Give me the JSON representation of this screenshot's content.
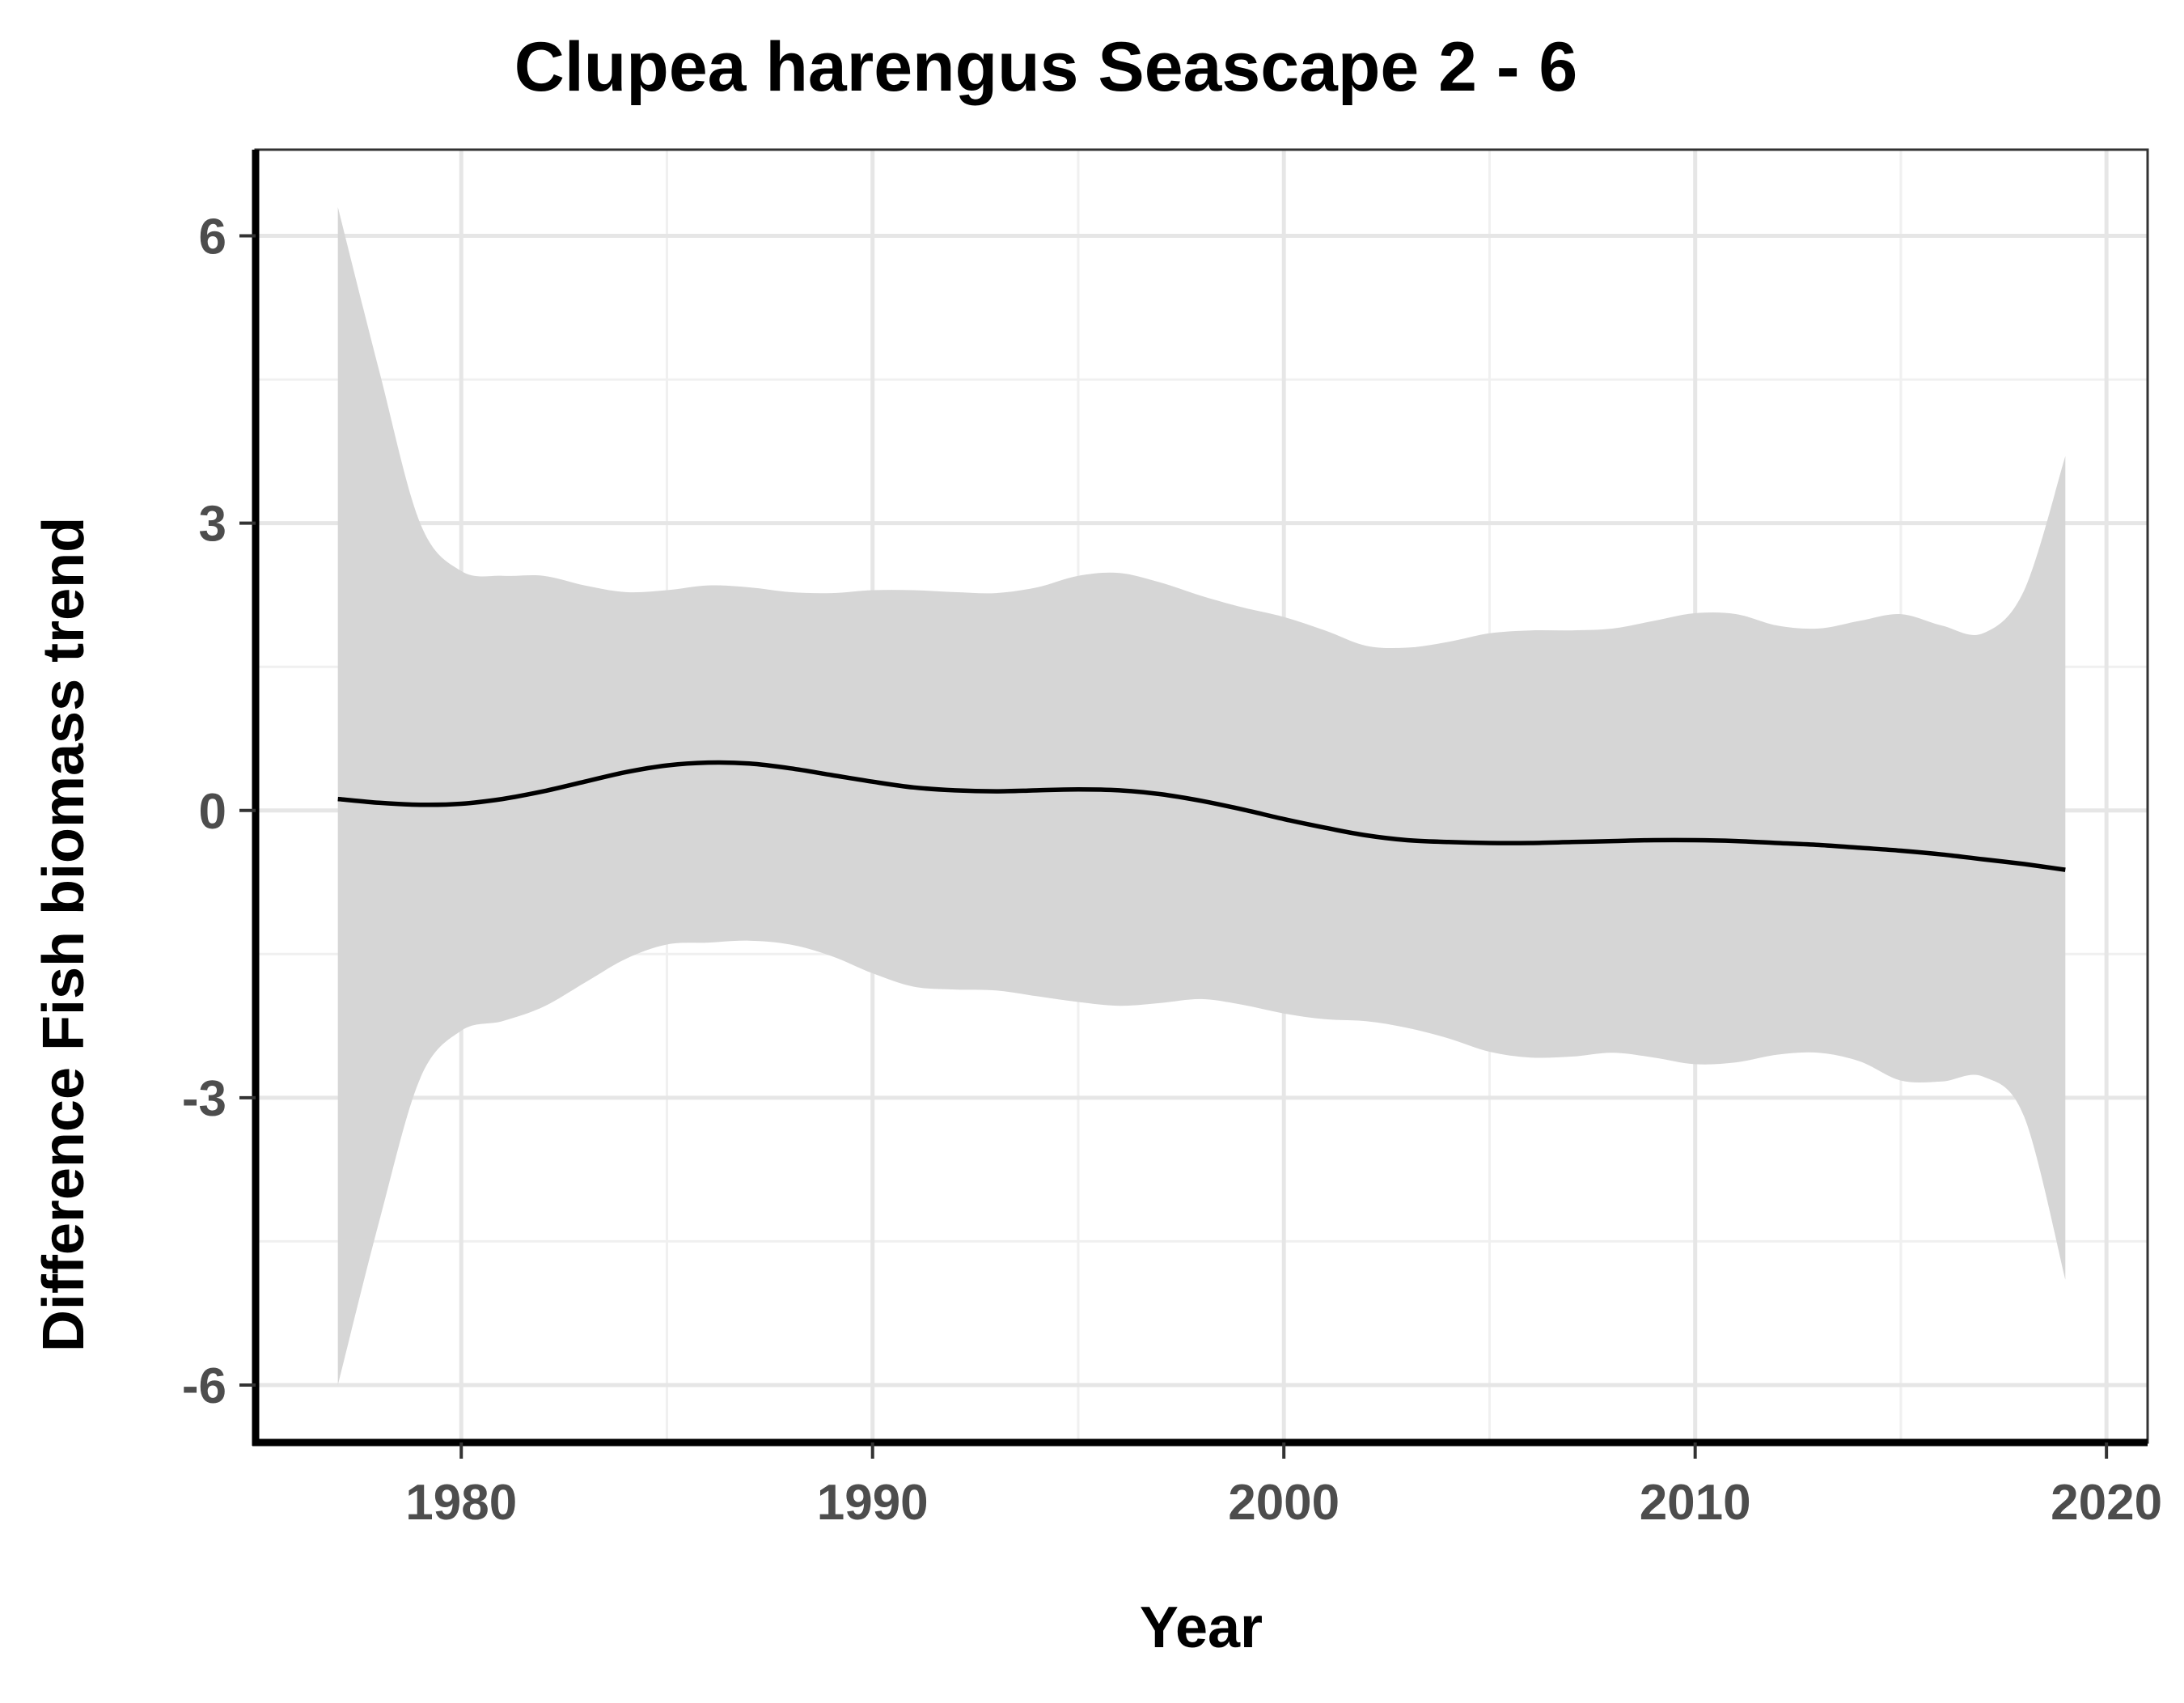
{
  "chart_data": {
    "type": "line",
    "title": "Clupea harengus Seascape 2 - 6",
    "xlabel": "Year",
    "ylabel": "Difference Fish biomass trend",
    "xlim": [
      1975,
      2021
    ],
    "ylim": [
      -6.6,
      6.9
    ],
    "x_ticks": [
      1980,
      1990,
      2000,
      2010,
      2020
    ],
    "x_tick_labels": [
      "1980",
      "1990",
      "2000",
      "2010",
      "2020"
    ],
    "y_ticks": [
      6,
      3,
      0,
      -3,
      -6
    ],
    "y_tick_labels": [
      "6",
      "3",
      "0",
      "-3",
      "-6"
    ],
    "grid": true,
    "legend": "none",
    "series": [
      {
        "x": [
          1977,
          1978,
          1979,
          1980,
          1981,
          1982,
          1983,
          1984,
          1985,
          1986,
          1987,
          1988,
          1989,
          1990,
          1991,
          1992,
          1993,
          1994,
          1995,
          1996,
          1997,
          1998,
          1999,
          2000,
          2001,
          2002,
          2003,
          2004,
          2005,
          2006,
          2007,
          2008,
          2009,
          2010,
          2011,
          2012,
          2013,
          2014,
          2015,
          2016,
          2017,
          2018,
          2019
        ],
        "y": [
          0.12,
          0.08,
          0.06,
          0.07,
          0.12,
          0.2,
          0.3,
          0.4,
          0.47,
          0.5,
          0.49,
          0.44,
          0.37,
          0.3,
          0.24,
          0.21,
          0.2,
          0.21,
          0.22,
          0.21,
          0.17,
          0.1,
          0.01,
          -0.09,
          -0.18,
          -0.26,
          -0.31,
          -0.33,
          -0.34,
          -0.34,
          -0.33,
          -0.32,
          -0.31,
          -0.31,
          -0.32,
          -0.34,
          -0.36,
          -0.39,
          -0.42,
          -0.46,
          -0.51,
          -0.56,
          -0.62
        ],
        "ci_upper": [
          6.3,
          4.6,
          3.0,
          2.5,
          2.45,
          2.45,
          2.35,
          2.28,
          2.3,
          2.35,
          2.33,
          2.28,
          2.27,
          2.3,
          2.3,
          2.28,
          2.27,
          2.33,
          2.45,
          2.48,
          2.38,
          2.24,
          2.12,
          2.02,
          1.88,
          1.72,
          1.7,
          1.76,
          1.85,
          1.88,
          1.88,
          1.9,
          1.98,
          2.06,
          2.05,
          1.93,
          1.9,
          1.98,
          2.05,
          1.93,
          1.85,
          2.3,
          3.7
        ],
        "ci_lower": [
          -6.0,
          -4.3,
          -2.8,
          -2.3,
          -2.2,
          -2.05,
          -1.8,
          -1.55,
          -1.4,
          -1.38,
          -1.36,
          -1.4,
          -1.52,
          -1.7,
          -1.84,
          -1.87,
          -1.88,
          -1.94,
          -2.0,
          -2.04,
          -2.01,
          -1.97,
          -2.03,
          -2.12,
          -2.18,
          -2.2,
          -2.27,
          -2.38,
          -2.52,
          -2.58,
          -2.57,
          -2.53,
          -2.58,
          -2.65,
          -2.63,
          -2.55,
          -2.53,
          -2.62,
          -2.82,
          -2.83,
          -2.78,
          -3.2,
          -4.9
        ]
      }
    ],
    "colors": {
      "ribbon": "#d6d6d6",
      "line": "#000000",
      "grid_major": "#e6e6e6",
      "grid_minor": "#f0f0f0",
      "panel_border": "#333333",
      "tick_label": "#4d4d4d"
    }
  }
}
